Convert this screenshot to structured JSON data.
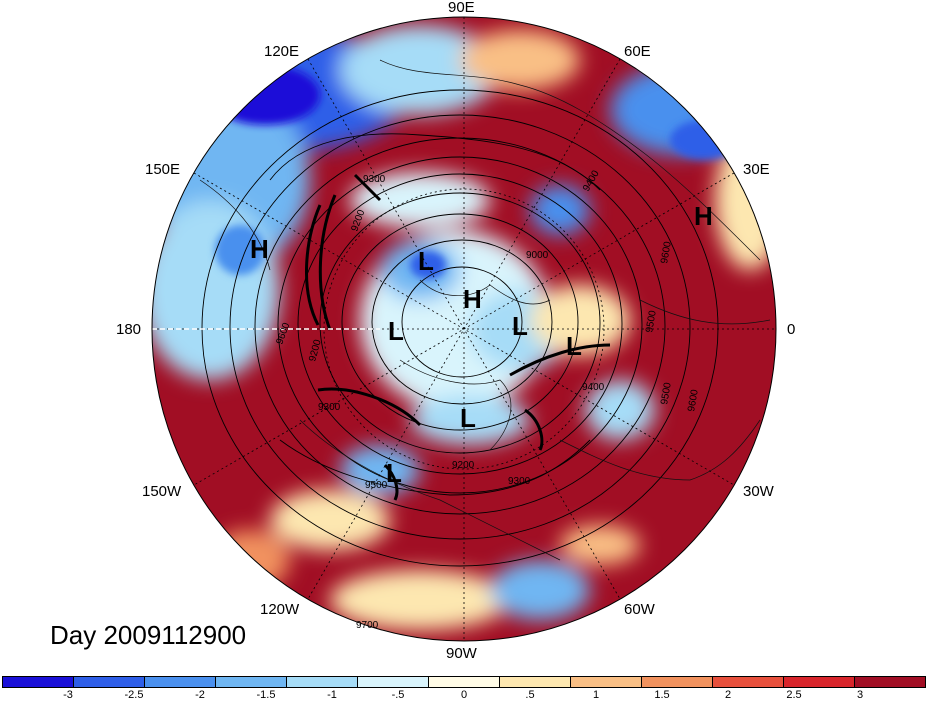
{
  "title": "Day 2009112900",
  "longitude_labels": {
    "lon_90e": "90E",
    "lon_60e": "60E",
    "lon_30e": "30E",
    "lon_0": "0",
    "lon_30w": "30W",
    "lon_60w": "60W",
    "lon_90w": "90W",
    "lon_120w": "120W",
    "lon_150w": "150W",
    "lon_180": "180",
    "lon_150e": "150E",
    "lon_120e": "120E"
  },
  "pressure_centers": {
    "h_siberia": "H",
    "h_europe": "H",
    "h_pole": "H",
    "l_barents": "L",
    "l_laptev": "L",
    "l_greenland": "L",
    "l_nw": "L",
    "l_baffin": "L",
    "l_alaska": "L"
  },
  "contour_labels": {
    "c1": "9300",
    "c2": "9400",
    "c3": "9000",
    "c4": "9600",
    "c5": "9500",
    "c6": "9400",
    "c7": "9500",
    "c8": "9600",
    "c9": "9300",
    "c10": "9200",
    "c11": "9300",
    "c12": "9200",
    "c13": "9600",
    "c14": "9500",
    "c15": "9700",
    "c16": "9200"
  },
  "colorbar": {
    "colors": [
      "#1a10d8",
      "#2e5ee8",
      "#4a90ee",
      "#6fb6f2",
      "#a6dcf7",
      "#d9f4fc",
      "#fffbe6",
      "#fde7b0",
      "#f9bf85",
      "#f1925e",
      "#e7503c",
      "#d8252b",
      "#a10e24"
    ],
    "ticks": [
      "-3",
      "-2.5",
      "-2",
      "-1.5",
      "-1",
      "-.5",
      "0",
      ".5",
      "1",
      "1.5",
      "2",
      "2.5",
      "3"
    ]
  }
}
